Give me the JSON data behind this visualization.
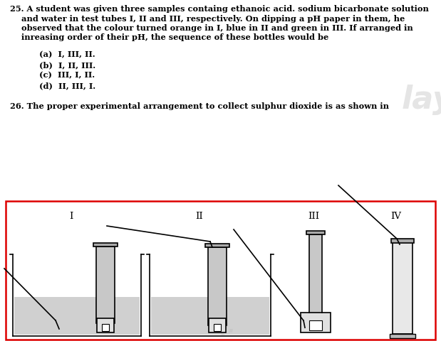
{
  "bg_color": "#ffffff",
  "text_color": "#000000",
  "q25_line1": "25. A student was given three samples containg ethanoic acid. sodium bicarbonate solution",
  "q25_line2": "    and water in test tubes I, II and III, respectively. On dipping a pH paper in them, he",
  "q25_line3": "    observed that the colour turned orange in I, blue in II and green in III. If arranged in",
  "q25_line4": "    inreasing order of their pH, the sequence of these bottles would be",
  "options_25": [
    "(a)  I, III, II.",
    "(b)  I, II, III.",
    "(c)  III, I, II.",
    "(d)  II, III, I."
  ],
  "q26_text": "26. The proper experimental arrangement to collect sulphur dioxide is as shown in",
  "labels": [
    "I",
    "II",
    "III",
    "IV"
  ],
  "water_color": "#d0d0d0",
  "tube_color": "#c8c8c8",
  "tube_color2": "#c0c0c0",
  "flask_color": "#e0e0e0",
  "border_color": "#dd0000",
  "watermark_text_color": "#c8c8c8",
  "watermark_iq_color": "#c0c0c0"
}
